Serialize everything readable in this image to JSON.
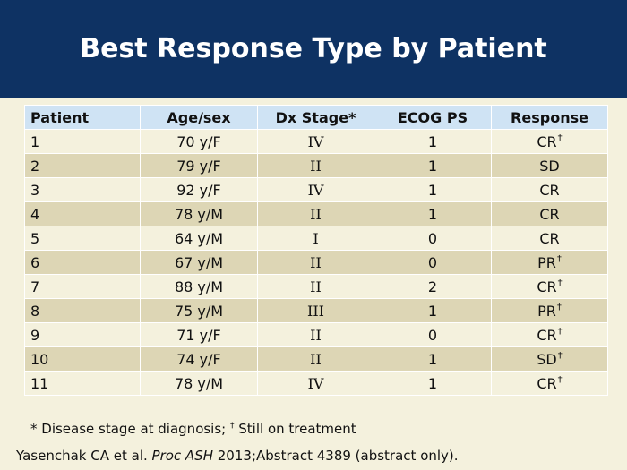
{
  "title": "Best Response Type by Patient",
  "table": {
    "headers": [
      "Patient",
      "Age/sex",
      "Dx Stage*",
      "ECOG PS",
      "Response"
    ],
    "rows": [
      {
        "patient": "1",
        "age": "70 y/F",
        "stage": "IV",
        "ecog": "1",
        "response": "CR",
        "dagger": "†"
      },
      {
        "patient": "2",
        "age": "79 y/F",
        "stage": "II",
        "ecog": "1",
        "response": "SD",
        "dagger": ""
      },
      {
        "patient": "3",
        "age": "92 y/F",
        "stage": "IV",
        "ecog": "1",
        "response": "CR",
        "dagger": ""
      },
      {
        "patient": "4",
        "age": "78 y/M",
        "stage": "II",
        "ecog": "1",
        "response": "CR",
        "dagger": ""
      },
      {
        "patient": "5",
        "age": "64 y/M",
        "stage": "I",
        "ecog": "0",
        "response": "CR",
        "dagger": ""
      },
      {
        "patient": "6",
        "age": "67 y/M",
        "stage": "II",
        "ecog": "0",
        "response": "PR",
        "dagger": "†"
      },
      {
        "patient": "7",
        "age": "88 y/M",
        "stage": "II",
        "ecog": "2",
        "response": "CR",
        "dagger": "†"
      },
      {
        "patient": "8",
        "age": "75 y/M",
        "stage": "III",
        "ecog": "1",
        "response": "PR",
        "dagger": "†"
      },
      {
        "patient": "9",
        "age": "71 y/F",
        "stage": "II",
        "ecog": "0",
        "response": "CR",
        "dagger": "†"
      },
      {
        "patient": "10",
        "age": "74 y/F",
        "stage": "II",
        "ecog": "1",
        "response": "SD",
        "dagger": "†"
      },
      {
        "patient": "11",
        "age": "78 y/M",
        "stage": "IV",
        "ecog": "1",
        "response": "CR",
        "dagger": "†"
      }
    ]
  },
  "footnote": {
    "star": "* Disease stage at diagnosis; ",
    "dagger": "†",
    "dagger_text": " Still on treatment"
  },
  "citation": {
    "authors": "Yasenchak CA et al. ",
    "journal": "Proc ASH",
    "rest": " 2013;Abstract 4389 (abstract only)."
  },
  "colors": {
    "header_band": "#0e3263",
    "table_header": "#cfe3f4",
    "row_light": "#f4f1dd",
    "row_dark": "#ddd6b5"
  }
}
